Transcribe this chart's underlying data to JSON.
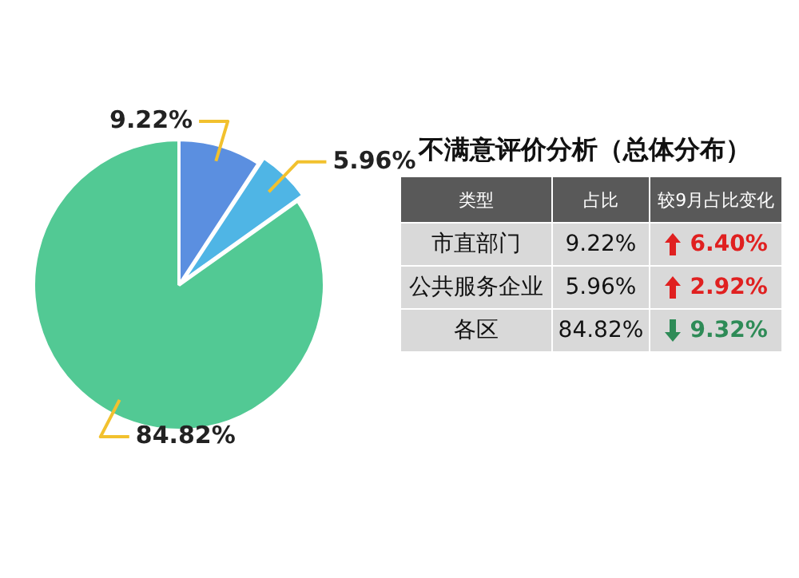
{
  "chart_data": {
    "type": "pie",
    "title": "不满意评价分析（总体分布）",
    "categories": [
      null,
      null,
      null
    ],
    "values": [
      9.22,
      5.96,
      84.82
    ],
    "value_labels": [
      "9.22%",
      "5.96%",
      "84.82%"
    ],
    "colors": [
      "#5b8fe0",
      "#4fb5e5",
      "#52c994"
    ],
    "annotations": [
      "类型",
      "占比",
      "较9月占比变化",
      "市直部门",
      "9.22%",
      "6.40%",
      "公共服务企业",
      "5.96%",
      "2.92%",
      "各区",
      "84.82%",
      "9.32%"
    ]
  }
}
